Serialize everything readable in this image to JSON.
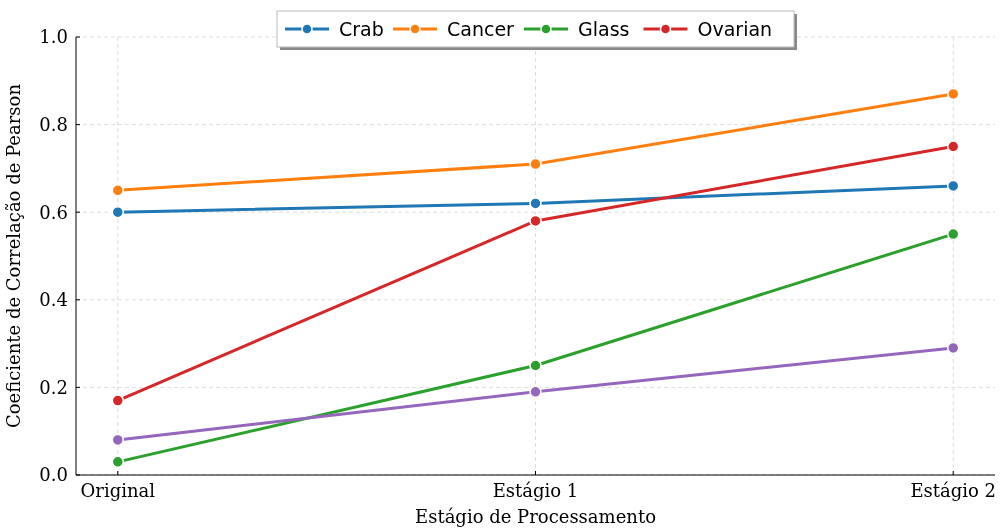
{
  "chart_data": {
    "type": "line",
    "xlabel": "Estágio de Processamento",
    "ylabel": "Coeficiente de Correlação de Pearson",
    "categories": [
      "Original",
      "Estágio 1",
      "Estágio 2"
    ],
    "series": [
      {
        "name": "Crab",
        "color": "#1f77b4",
        "values": [
          0.6,
          0.62,
          0.66
        ]
      },
      {
        "name": "Cancer",
        "color": "#ff7f0e",
        "values": [
          0.65,
          0.71,
          0.87
        ]
      },
      {
        "name": "Glass",
        "color": "#2ca02c",
        "values": [
          0.03,
          0.25,
          0.55
        ]
      },
      {
        "name": "Ovarian",
        "color": "#d62728",
        "values": [
          0.17,
          0.58,
          0.75
        ]
      },
      {
        "color": "#9467bd",
        "values": [
          0.08,
          0.19,
          0.29
        ]
      }
    ],
    "ylim": [
      0,
      1
    ],
    "yticks": [
      {
        "value": 0,
        "label": "0.0"
      },
      {
        "value": 0.2,
        "label": "0.2"
      },
      {
        "value": 0.4,
        "label": "0.4"
      },
      {
        "value": 0.6,
        "label": "0.6"
      },
      {
        "value": 0.8,
        "label": "0.8"
      },
      {
        "value": 1,
        "label": "1.0"
      }
    ],
    "grid": true,
    "legend": "top",
    "marker": "circle",
    "line_style": "solid"
  }
}
